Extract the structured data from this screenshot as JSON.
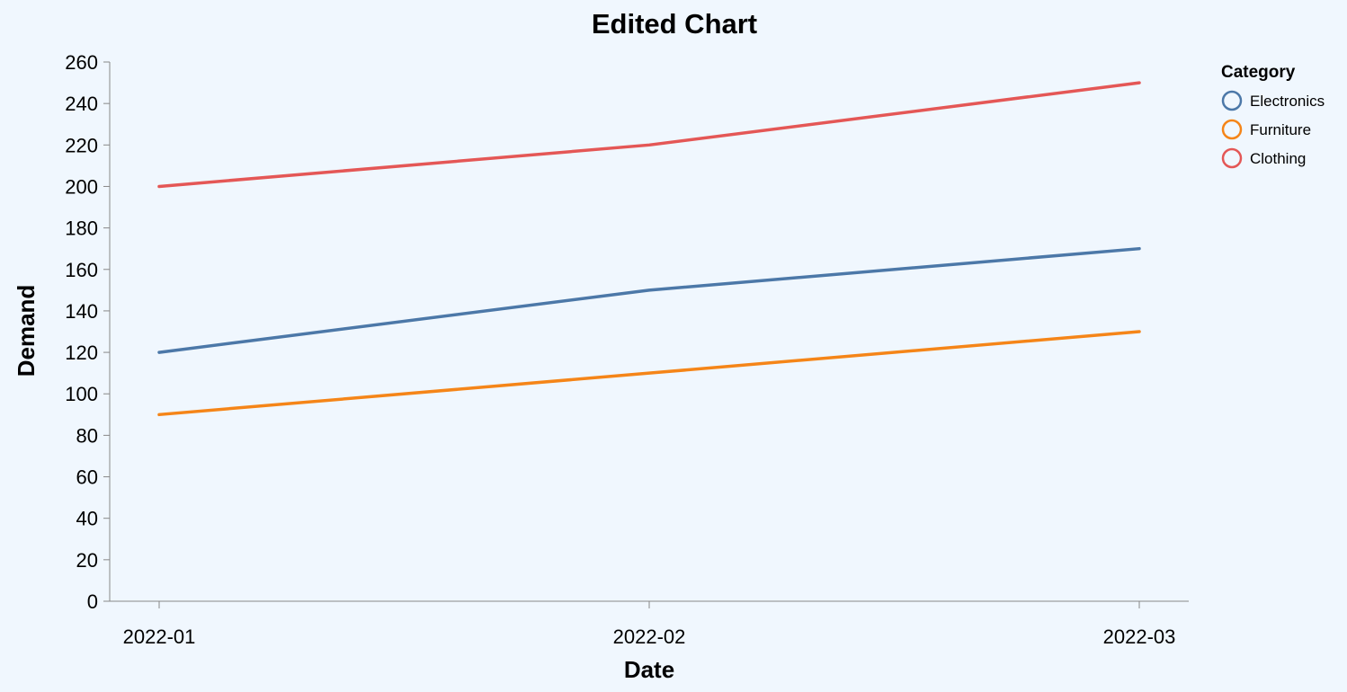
{
  "chart_data": {
    "type": "line",
    "title": "Edited Chart",
    "xlabel": "Date",
    "ylabel": "Demand",
    "x": [
      "2022-01",
      "2022-02",
      "2022-03"
    ],
    "ylim": [
      0,
      260
    ],
    "yticks": [
      0,
      20,
      40,
      60,
      80,
      100,
      120,
      140,
      160,
      180,
      200,
      220,
      240,
      260
    ],
    "grid": false,
    "legend": {
      "title": "Category",
      "position": "top-right"
    },
    "series": [
      {
        "name": "Electronics",
        "color": "#4c78a8",
        "values": [
          120,
          150,
          170
        ]
      },
      {
        "name": "Furniture",
        "color": "#f58518",
        "values": [
          90,
          110,
          130
        ]
      },
      {
        "name": "Clothing",
        "color": "#e45756",
        "values": [
          200,
          220,
          250
        ]
      }
    ]
  }
}
